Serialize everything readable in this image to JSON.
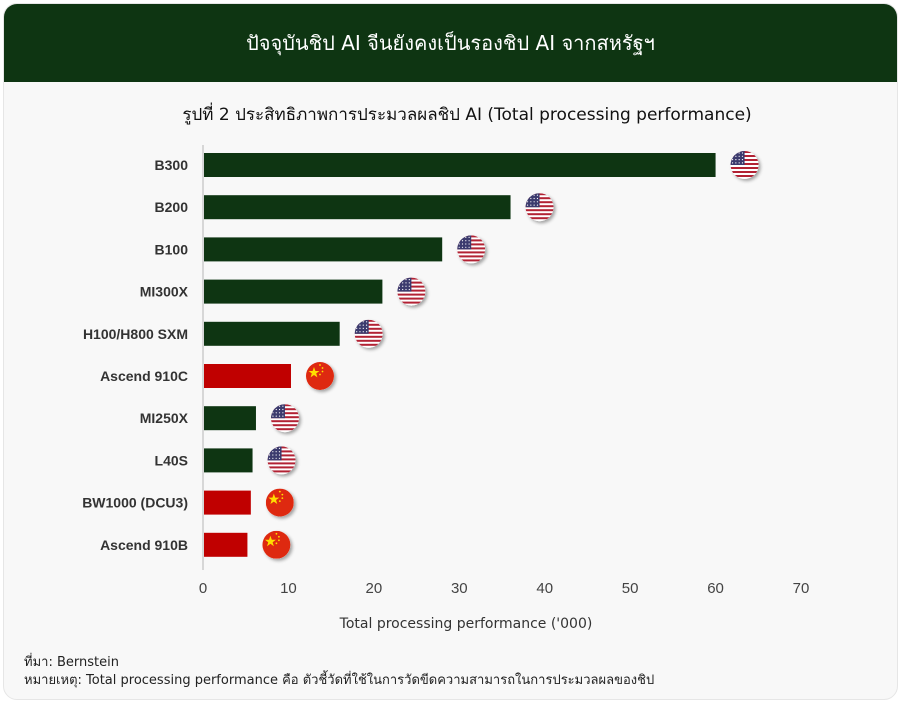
{
  "header": {
    "title": "ปัจจุบันชิป AI จีนยังคงเป็นรองชิป AI จากสหรัฐฯ"
  },
  "chart_data": {
    "type": "bar",
    "orientation": "horizontal",
    "title": "รูปที่ 2 ประสิทธิภาพการประมวลผลชิป AI (Total processing performance)",
    "xlabel": "Total processing performance ('000)",
    "ylabel": "",
    "xlim": [
      0,
      70
    ],
    "xticks": [
      0,
      10,
      20,
      30,
      40,
      50,
      60,
      70
    ],
    "categories": [
      "B300",
      "B200",
      "B100",
      "MI300X",
      "H100/H800 SXM",
      "Ascend 910C",
      "MI250X",
      "L40S",
      "BW1000 (DCU3)",
      "Ascend 910B"
    ],
    "values": [
      60,
      36,
      28,
      21,
      16,
      10.3,
      6.2,
      5.8,
      5.6,
      5.2
    ],
    "origin": [
      "US",
      "US",
      "US",
      "US",
      "US",
      "China",
      "US",
      "US",
      "China",
      "China"
    ],
    "colors": {
      "US": "#0e3512",
      "China": "#c00000"
    },
    "grid": false
  },
  "footer": {
    "source": "ที่มา: Bernstein",
    "note": "หมายเหตุ: Total processing performance คือ ตัวชี้วัดที่ใช้ในการวัดขีดความสามารถในการประมวลผลของชิป"
  }
}
